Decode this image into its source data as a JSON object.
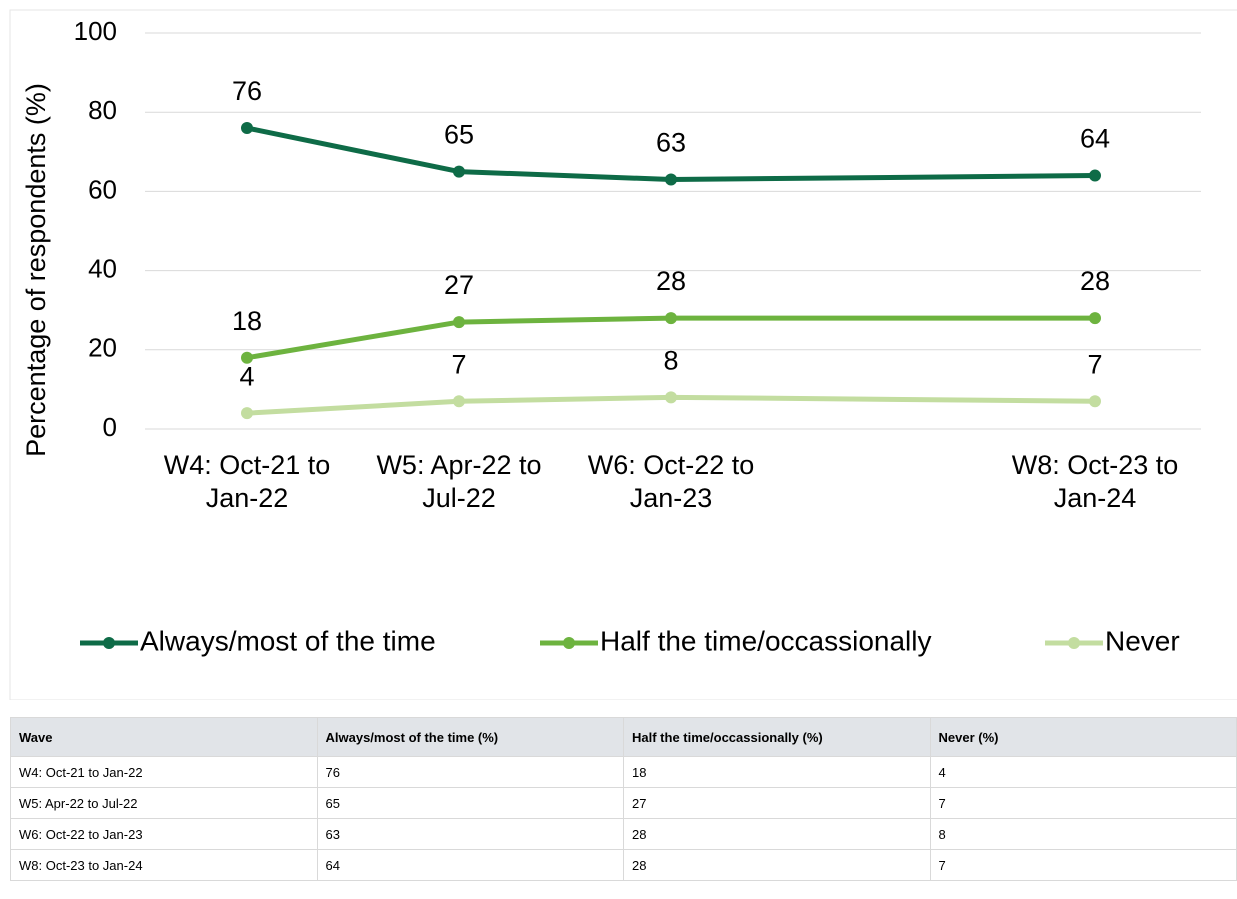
{
  "chart_data": {
    "type": "line",
    "y_label": "Percentage of respondents (%)",
    "categories": [
      "W4: Oct-21 to Jan-22",
      "W5: Apr-22 to Jul-22",
      "W6: Oct-22 to Jan-23",
      null,
      "W8: Oct-23 to Jan-24"
    ],
    "series": [
      {
        "name": "Always/most of the time",
        "color": "#0e6b47",
        "values": [
          76,
          65,
          63,
          null,
          64
        ]
      },
      {
        "name": "Half the time/occassionally",
        "color": "#6db33f",
        "values": [
          18,
          27,
          28,
          null,
          28
        ]
      },
      {
        "name": "Never",
        "color": "#c3dda0",
        "values": [
          4,
          7,
          8,
          null,
          7
        ]
      }
    ],
    "ylim": [
      0,
      100
    ],
    "yticks": [
      0,
      20,
      40,
      60,
      80,
      100
    ],
    "grid": true,
    "span_gaps": true,
    "legend": "bottom"
  },
  "table": {
    "header": [
      "Wave",
      "Always/most of the time (%)",
      "Half the time/occassionally (%)",
      "Never (%)"
    ],
    "rows": [
      [
        "W4: Oct-21 to Jan-22",
        "76",
        "18",
        "4"
      ],
      [
        "W5: Apr-22 to Jul-22",
        "65",
        "27",
        "7"
      ],
      [
        "W6: Oct-22 to Jan-23",
        "63",
        "28",
        "8"
      ],
      [
        "W8: Oct-23 to Jan-24",
        "64",
        "28",
        "7"
      ]
    ]
  }
}
